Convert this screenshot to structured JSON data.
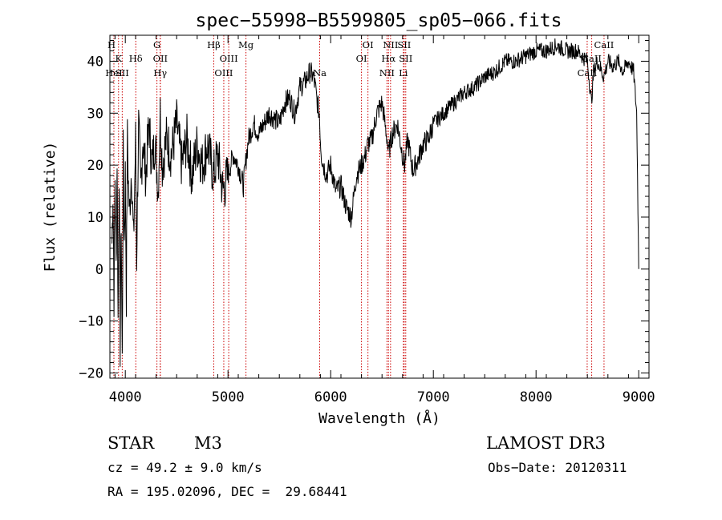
{
  "chart_data": {
    "type": "line",
    "title": "spec−55998−B5599805_sp05−066.fits",
    "xlabel": "Wavelength (Å)",
    "ylabel": "Flux (relative)",
    "xlim": [
      3850,
      9100
    ],
    "ylim": [
      -21,
      45
    ],
    "x_ticks": [
      {
        "value": 4000,
        "label": "4000"
      },
      {
        "value": 5000,
        "label": "5000"
      },
      {
        "value": 6000,
        "label": "6000"
      },
      {
        "value": 7000,
        "label": "7000"
      },
      {
        "value": 8000,
        "label": "8000"
      },
      {
        "value": 9000,
        "label": "9000"
      }
    ],
    "y_ticks": [
      {
        "value": -20,
        "label": "−20"
      },
      {
        "value": -10,
        "label": "−10"
      },
      {
        "value": 0,
        "label": "0"
      },
      {
        "value": 10,
        "label": "10"
      },
      {
        "value": 20,
        "label": "20"
      },
      {
        "value": 30,
        "label": "30"
      },
      {
        "value": 40,
        "label": "40"
      }
    ],
    "series": [
      {
        "x": [
          3870,
          3880,
          3890,
          3900,
          3910,
          3920,
          3930,
          3940,
          3950,
          3960,
          3970,
          3980,
          3990,
          4000,
          4010,
          4020,
          4040,
          4060,
          4080,
          4100,
          4110,
          4130,
          4150,
          4170,
          4200,
          4230,
          4260,
          4290,
          4320,
          4340,
          4360,
          4400,
          4450,
          4500,
          4550,
          4600,
          4650,
          4700,
          4750,
          4800,
          4860,
          4900,
          4950,
          5000,
          5050,
          5100,
          5150,
          5180,
          5200,
          5250,
          5300,
          5350,
          5400,
          5450,
          5500,
          5550,
          5600,
          5650,
          5700,
          5750,
          5800,
          5830,
          5850,
          5870,
          5890,
          5900,
          5910,
          5930,
          5960,
          6000,
          6050,
          6100,
          6150,
          6200,
          6250,
          6300,
          6340,
          6360,
          6400,
          6450,
          6500,
          6550,
          6563,
          6580,
          6600,
          6650,
          6700,
          6720,
          6750,
          6800,
          6850,
          6900,
          6950,
          7000,
          7100,
          7200,
          7300,
          7400,
          7500,
          7600,
          7700,
          7800,
          7900,
          8000,
          8100,
          8200,
          8300,
          8400,
          8500,
          8540,
          8560,
          8600,
          8660,
          8700,
          8750,
          8800,
          8850,
          8900,
          8950,
          8980,
          9000
        ],
        "y": [
          5,
          15,
          -5,
          18,
          0,
          22,
          -10,
          20,
          -15,
          10,
          -18,
          22,
          5,
          18,
          -5,
          25,
          10,
          20,
          5,
          25,
          2,
          28,
          15,
          25,
          18,
          28,
          20,
          25,
          15,
          30,
          20,
          25,
          22,
          28,
          20,
          25,
          18,
          24,
          20,
          24,
          18,
          22,
          15,
          18,
          22,
          20,
          16,
          22,
          25,
          28,
          26,
          28,
          30,
          29,
          28,
          32,
          33,
          30,
          35,
          36,
          38,
          37,
          35,
          32,
          30,
          25,
          22,
          20,
          18,
          20,
          15,
          16,
          12,
          10,
          18,
          20,
          22,
          24,
          25,
          30,
          32,
          25,
          22,
          24,
          26,
          28,
          22,
          20,
          25,
          19,
          21,
          24,
          25,
          28,
          30,
          32,
          34,
          35,
          37,
          38,
          40,
          40,
          41,
          42,
          42,
          43,
          42,
          42,
          40,
          32,
          38,
          40,
          37,
          40,
          39,
          40,
          38,
          40,
          38,
          30,
          0
        ]
      }
    ],
    "line_markers": [
      {
        "x": 3835,
        "label": "H",
        "row": 0
      },
      {
        "x": 3934,
        "label": "K",
        "row": 1
      },
      {
        "x": 3889,
        "label": "HeI",
        "row": 2
      },
      {
        "x": 3970,
        "label": "SII",
        "row": 2
      },
      {
        "x": 4102,
        "label": "Hδ",
        "row": 1
      },
      {
        "x": 4308,
        "label": "G",
        "row": 0
      },
      {
        "x": 4341,
        "label": "OII",
        "row": 1
      },
      {
        "x": 4340,
        "label": "Hγ",
        "row": 2
      },
      {
        "x": 4861,
        "label": "Hβ",
        "row": 0
      },
      {
        "x": 5007,
        "label": "OIII",
        "row": 1
      },
      {
        "x": 4959,
        "label": "OIII",
        "row": 2
      },
      {
        "x": 5175,
        "label": "Mg",
        "row": 0
      },
      {
        "x": 5893,
        "label": "Na",
        "row": 2
      },
      {
        "x": 6363,
        "label": "OI",
        "row": 0
      },
      {
        "x": 6300,
        "label": "OI",
        "row": 1
      },
      {
        "x": 6583,
        "label": "NII",
        "row": 0
      },
      {
        "x": 6716,
        "label": "SII",
        "row": 0
      },
      {
        "x": 6563,
        "label": "Hα",
        "row": 1
      },
      {
        "x": 6731,
        "label": "SII",
        "row": 1
      },
      {
        "x": 6548,
        "label": "NII",
        "row": 2
      },
      {
        "x": 6708,
        "label": "Li",
        "row": 2
      },
      {
        "x": 8662,
        "label": "CaII",
        "row": 0
      },
      {
        "x": 8542,
        "label": "CaII",
        "row": 1
      },
      {
        "x": 8498,
        "label": "CaII",
        "row": 2
      }
    ],
    "grid": false,
    "legend": "none"
  },
  "info": {
    "object_class": "STAR",
    "subclass": "M3",
    "survey": "LAMOST DR3",
    "cz": "cz = 49.2 ± 9.0 km/s",
    "obs_date": "Obs−Date: 20120311",
    "coords": "RA = 195.02096, DEC =  29.68441"
  },
  "colors": {
    "spectrum": "#000000",
    "line_marker": "#cc0000",
    "frame": "#000000",
    "background": "#ffffff"
  }
}
